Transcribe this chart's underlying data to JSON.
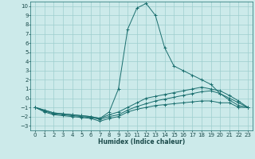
{
  "xlabel": "Humidex (Indice chaleur)",
  "background_color": "#cceaea",
  "grid_color": "#9ecece",
  "line_color": "#1a6e6e",
  "xlim": [
    -0.5,
    23.5
  ],
  "ylim": [
    -3.5,
    10.5
  ],
  "xticks": [
    0,
    1,
    2,
    3,
    4,
    5,
    6,
    7,
    8,
    9,
    10,
    11,
    12,
    13,
    14,
    15,
    16,
    17,
    18,
    19,
    20,
    21,
    22,
    23
  ],
  "yticks": [
    -3,
    -2,
    -1,
    0,
    1,
    2,
    3,
    4,
    5,
    6,
    7,
    8,
    9,
    10
  ],
  "series": [
    {
      "x": [
        0,
        1,
        2,
        3,
        4,
        5,
        6,
        7,
        8,
        9,
        10,
        11,
        12,
        13,
        14,
        15,
        16,
        17,
        18,
        19,
        20,
        21,
        22,
        23
      ],
      "y": [
        -1,
        -1.5,
        -1.8,
        -1.9,
        -2.0,
        -2.1,
        -2.2,
        -2.5,
        -2.2,
        -2.0,
        -1.5,
        -1.2,
        -1.0,
        -0.8,
        -0.7,
        -0.6,
        -0.5,
        -0.4,
        -0.3,
        -0.3,
        -0.5,
        -0.5,
        -1.0,
        -1.0
      ]
    },
    {
      "x": [
        0,
        1,
        2,
        3,
        4,
        5,
        6,
        7,
        8,
        9,
        10,
        11,
        12,
        13,
        14,
        15,
        16,
        17,
        18,
        19,
        20,
        21,
        22,
        23
      ],
      "y": [
        -1,
        -1.4,
        -1.7,
        -1.8,
        -1.9,
        -2.0,
        -2.1,
        -2.3,
        -2.0,
        -1.8,
        -1.3,
        -0.9,
        -0.6,
        -0.3,
        -0.1,
        0.1,
        0.3,
        0.5,
        0.7,
        0.8,
        0.5,
        0.0,
        -0.5,
        -1.0
      ]
    },
    {
      "x": [
        0,
        1,
        2,
        3,
        4,
        5,
        6,
        7,
        8,
        9,
        10,
        11,
        12,
        13,
        14,
        15,
        16,
        17,
        18,
        19,
        20,
        21,
        22,
        23
      ],
      "y": [
        -1,
        -1.3,
        -1.6,
        -1.7,
        -1.8,
        -1.9,
        -2.0,
        -2.2,
        -1.8,
        -1.5,
        -1.0,
        -0.5,
        0.0,
        0.2,
        0.4,
        0.6,
        0.8,
        1.0,
        1.2,
        1.0,
        0.8,
        0.3,
        -0.3,
        -1.0
      ]
    },
    {
      "x": [
        0,
        1,
        2,
        3,
        4,
        5,
        6,
        7,
        8,
        9,
        10,
        11,
        12,
        13,
        14,
        15,
        16,
        17,
        18,
        19,
        20,
        21,
        22,
        23
      ],
      "y": [
        -1,
        -1.3,
        -1.6,
        -1.7,
        -1.8,
        -1.9,
        -2.0,
        -2.2,
        -1.5,
        1.0,
        7.5,
        9.8,
        10.3,
        9.0,
        5.5,
        3.5,
        3.0,
        2.5,
        2.0,
        1.5,
        0.5,
        -0.2,
        -0.8,
        -1.0
      ]
    }
  ]
}
